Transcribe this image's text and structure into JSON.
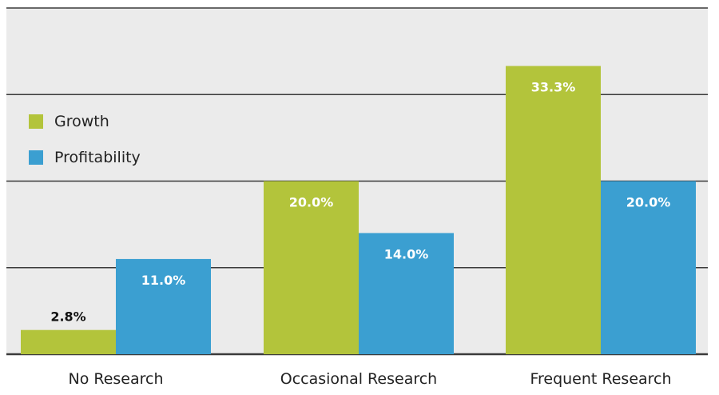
{
  "chart_data": {
    "type": "bar",
    "categories": [
      "No Research",
      "Occasional Research",
      "Frequent Research"
    ],
    "series": [
      {
        "name": "Growth",
        "values": [
          2.8,
          20.0,
          33.3
        ],
        "labels": [
          "2.8%",
          "20.0%",
          "33.3%"
        ],
        "color": "#b3c43b"
      },
      {
        "name": "Profitability",
        "values": [
          11.0,
          14.0,
          20.0
        ],
        "labels": [
          "11.0%",
          "14.0%",
          "20.0%"
        ],
        "color": "#3b9fd1"
      }
    ],
    "title": "",
    "xlabel": "",
    "ylabel": "",
    "ylim": [
      0,
      40
    ],
    "y_gridlines": [
      0,
      10,
      20,
      30,
      40
    ],
    "grid": true,
    "plot_background": "#ebebeb",
    "legend_position": "top-left"
  }
}
